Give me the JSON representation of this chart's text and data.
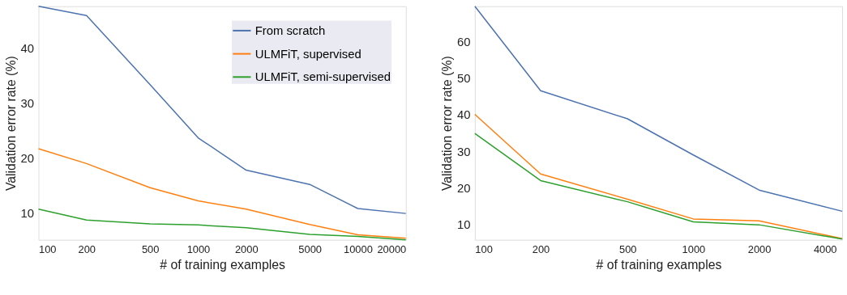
{
  "chart_data": [
    {
      "type": "line",
      "xlabel": "# of training examples",
      "ylabel": "Validation error rate (%)",
      "log": "x",
      "grid": false,
      "legend": "top right",
      "x": [
        100,
        200,
        500,
        1000,
        2000,
        5000,
        10000,
        20000
      ],
      "xlim": [
        100,
        20000
      ],
      "xticks": [
        100,
        200,
        500,
        1000,
        2000,
        5000,
        10000,
        20000
      ],
      "ylim": [
        5.1,
        47.7
      ],
      "yticks": [
        10,
        20,
        30,
        40
      ],
      "series": [
        {
          "name": "From scratch",
          "color": "#4c72b0",
          "values": [
            47.7,
            46.0,
            33.4,
            23.7,
            17.8,
            15.2,
            10.8,
            9.9
          ]
        },
        {
          "name": "ULMFiT, supervised",
          "color": "#ff7f0e",
          "values": [
            21.7,
            19.0,
            14.6,
            12.2,
            10.7,
            7.9,
            6.0,
            5.4
          ]
        },
        {
          "name": "ULMFiT, semi-supervised",
          "color": "#2ca02c",
          "values": [
            10.7,
            8.7,
            8.0,
            7.8,
            7.3,
            6.1,
            5.7,
            5.1
          ]
        }
      ]
    },
    {
      "type": "line",
      "xlabel": "# of training examples",
      "ylabel": "Validation error rate (%)",
      "log": "x",
      "grid": false,
      "x": [
        100,
        200,
        500,
        1000,
        2000,
        4800
      ],
      "xlim": [
        100,
        4800
      ],
      "xticks": [
        100,
        200,
        500,
        1000,
        2000,
        4000
      ],
      "ylim": [
        5.8,
        69.7
      ],
      "yticks": [
        10,
        20,
        30,
        40,
        50,
        60
      ],
      "series": [
        {
          "color": "#4c72b0",
          "values": [
            69.7,
            46.6,
            38.9,
            29.0,
            19.4,
            13.6
          ]
        },
        {
          "color": "#ff7f0e",
          "values": [
            40.1,
            23.8,
            16.9,
            11.5,
            11.0,
            6.1
          ]
        },
        {
          "color": "#2ca02c",
          "values": [
            34.9,
            22.0,
            16.2,
            10.7,
            9.9,
            6.0
          ]
        }
      ]
    }
  ]
}
